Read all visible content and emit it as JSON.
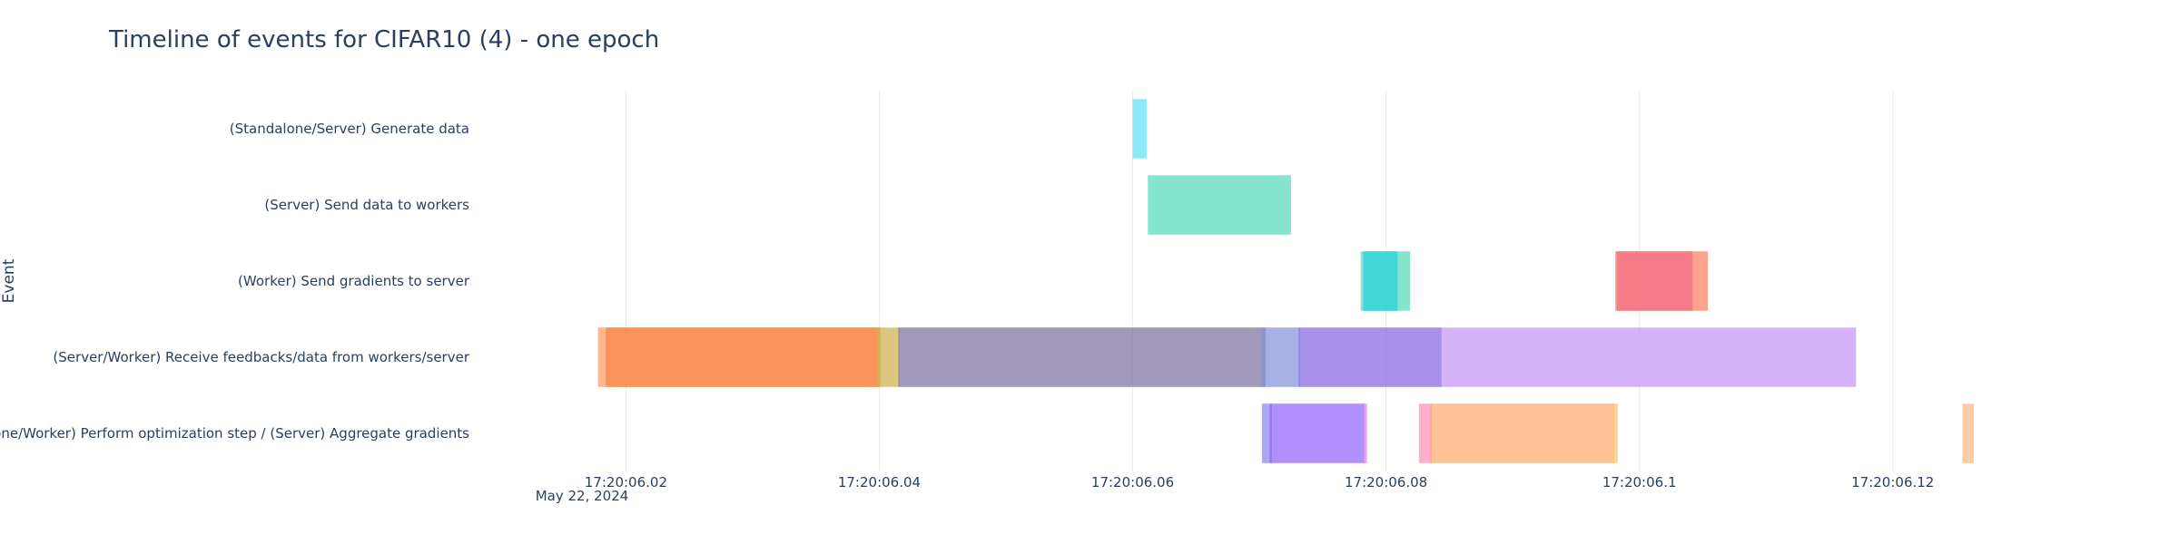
{
  "chart_data": {
    "type": "timeline",
    "title": "Timeline of events for CIFAR10 (4) - one epoch",
    "ylabel": "Event",
    "xlabel": "",
    "x_unit": "seconds after 17:20:06 on May 22, 2024",
    "x_date_label": "May 22, 2024",
    "xlim": [
      0.0113,
      0.1403
    ],
    "x_ticks": [
      {
        "value": 0.02,
        "label": "17:20:06.02"
      },
      {
        "value": 0.04,
        "label": "17:20:06.04"
      },
      {
        "value": 0.06,
        "label": "17:20:06.06"
      },
      {
        "value": 0.08,
        "label": "17:20:06.08"
      },
      {
        "value": 0.1,
        "label": "17:20:06.1"
      },
      {
        "value": 0.12,
        "label": "17:20:06.12"
      }
    ],
    "grid": true,
    "legend": "none",
    "categories": [
      "(Standalone/Server) Generate data",
      "(Server) Send data to workers",
      "(Worker) Send gradients to server",
      "(Server/Worker) Receive feedbacks/data from workers/server",
      "(Standalone/Worker) Perform optimization step / (Server) Aggregate gradients"
    ],
    "bars": [
      {
        "row": 0,
        "start": 0.06,
        "end": 0.0611,
        "color": "#5ee0f7"
      },
      {
        "row": 1,
        "start": 0.0612,
        "end": 0.0725,
        "color": "#56dbb8"
      },
      {
        "row": 2,
        "start": 0.078,
        "end": 0.0819,
        "color": "#56dbb8"
      },
      {
        "row": 2,
        "start": 0.0782,
        "end": 0.0809,
        "color": "#28d0da"
      },
      {
        "row": 2,
        "start": 0.0981,
        "end": 0.1054,
        "color": "#f97f60"
      },
      {
        "row": 2,
        "start": 0.0982,
        "end": 0.1042,
        "color": "#f56e88"
      },
      {
        "row": 3,
        "start": 0.0178,
        "end": 0.0401,
        "color": "#fd9d5e"
      },
      {
        "row": 3,
        "start": 0.0184,
        "end": 0.04,
        "color": "#f98448"
      },
      {
        "row": 3,
        "start": 0.0398,
        "end": 0.0416,
        "color": "#cdb24f"
      },
      {
        "row": 3,
        "start": 0.0415,
        "end": 0.0705,
        "color": "#7c72a0"
      },
      {
        "row": 3,
        "start": 0.0702,
        "end": 0.0732,
        "color": "#8494d9"
      },
      {
        "row": 3,
        "start": 0.0731,
        "end": 0.0844,
        "color": "#8766e2"
      },
      {
        "row": 3,
        "start": 0.0843,
        "end": 0.1171,
        "color": "#c395f9"
      },
      {
        "row": 4,
        "start": 0.0702,
        "end": 0.071,
        "color": "#8888ea"
      },
      {
        "row": 4,
        "start": 0.0708,
        "end": 0.0783,
        "color": "#9165f9"
      },
      {
        "row": 4,
        "start": 0.0782,
        "end": 0.0785,
        "color": "#e084e8"
      },
      {
        "row": 4,
        "start": 0.0826,
        "end": 0.0836,
        "color": "#fd90b9"
      },
      {
        "row": 4,
        "start": 0.0835,
        "end": 0.098,
        "color": "#fea86c"
      },
      {
        "row": 4,
        "start": 0.0979,
        "end": 0.0983,
        "color": "#fdc46a"
      },
      {
        "row": 4,
        "start": 0.1255,
        "end": 0.1264,
        "color": "#fbb884"
      }
    ]
  }
}
